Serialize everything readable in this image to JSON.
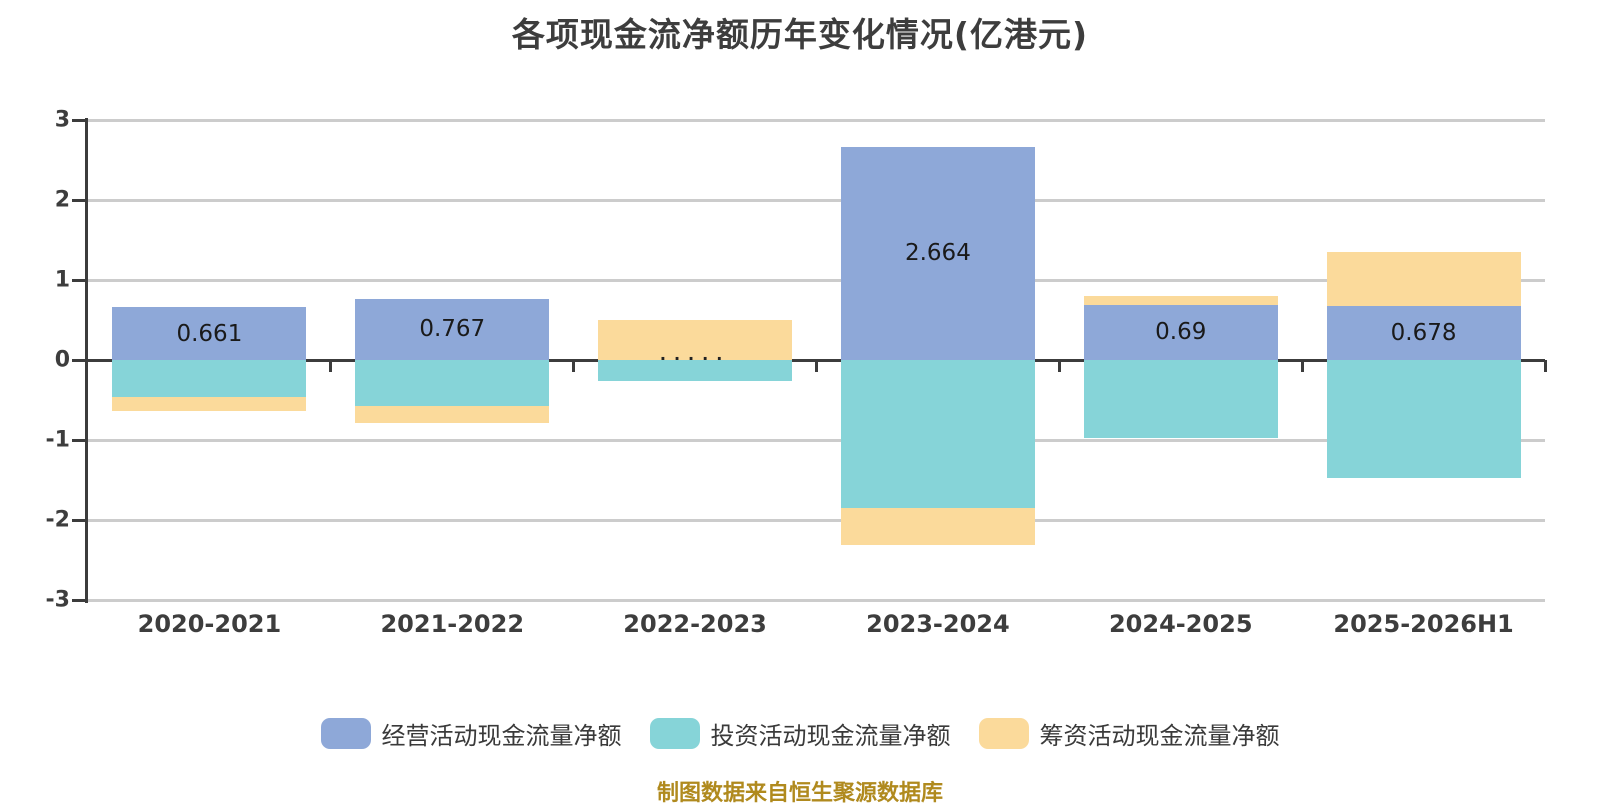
{
  "title": "各项现金流净额历年变化情况(亿港元)",
  "source_note": "制图数据来自恒生聚源数据库",
  "colors": {
    "background": "#ffffff",
    "operating_series": "#8ea8d8",
    "investing_series": "#86d4d8",
    "financing_series": "#fbda9b",
    "axis": "#3c3c3c",
    "grid": "#cccccc",
    "tick_text": "#3d3d3d",
    "value_label_text": "#1a1a1a",
    "source_text": "#b08a1e"
  },
  "chart_data": {
    "type": "bar",
    "stacked": true,
    "unit": "亿港元",
    "title": "各项现金流净额历年变化情况(亿港元)",
    "categories": [
      "2020-2021",
      "2021-2022",
      "2022-2023",
      "2023-2024",
      "2024-2025",
      "2025-2026H1"
    ],
    "series": [
      {
        "name": "经营活动现金流量净额",
        "color": "#8ea8d8",
        "values": [
          0.661,
          0.767,
          0.0,
          2.664,
          0.69,
          0.678
        ]
      },
      {
        "name": "投资活动现金流量净额",
        "color": "#86d4d8",
        "values": [
          -0.46,
          -0.58,
          -0.26,
          -1.85,
          -0.98,
          -1.48
        ]
      },
      {
        "name": "筹资活动现金流量净额",
        "color": "#fbda9b",
        "values": [
          -0.18,
          -0.21,
          0.5,
          -0.46,
          0.11,
          0.67
        ]
      }
    ],
    "bar_labels": [
      "0.661",
      "0.767",
      "",
      "2.664",
      "0.69",
      "0.678"
    ],
    "partial_label": "·····",
    "partial_label_index": 2,
    "xlabel": "",
    "ylabel": "",
    "yticks": [
      3,
      2,
      1,
      0,
      -1,
      -2,
      -3
    ],
    "ylim": [
      -3,
      3
    ],
    "grid": true,
    "legend_position": "bottom"
  }
}
